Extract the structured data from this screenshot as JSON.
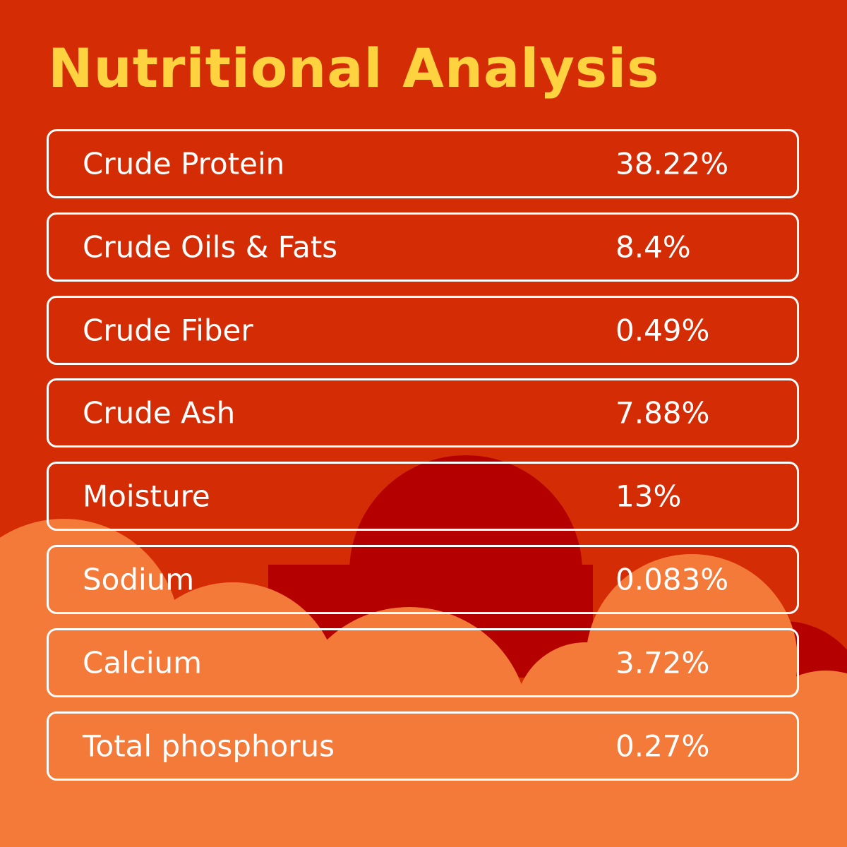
{
  "header": {
    "title": "Nutritional Analysis"
  },
  "table": {
    "rows": [
      [
        "Crude Protein",
        "38.22%"
      ],
      [
        "Crude Oils & Fats",
        "8.4%"
      ],
      [
        "Crude Fiber",
        "0.49%"
      ],
      [
        "Crude Ash",
        "7.88%"
      ],
      [
        "Moisture",
        "13%"
      ],
      [
        "Sodium",
        "0.083%"
      ],
      [
        "Calcium",
        "3.72%"
      ],
      [
        "Total phosphorus",
        "0.27%"
      ]
    ]
  }
}
